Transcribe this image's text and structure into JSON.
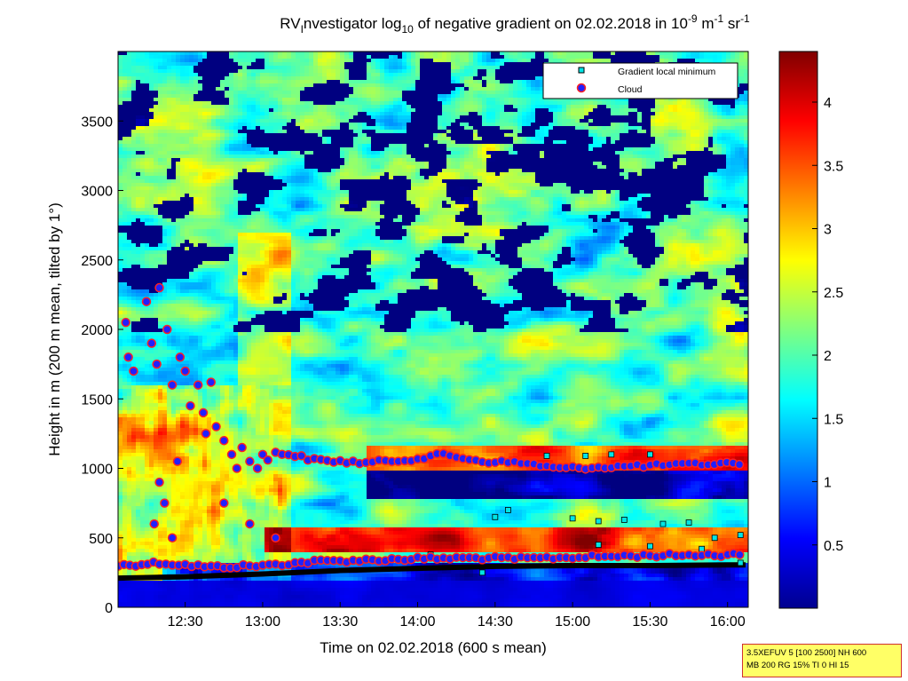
{
  "title": {
    "prefix": "RV",
    "sub_i": "I",
    "mid": "nvestigator log",
    "sub_10": "10",
    "rest1": " of negative gradient on 02.02.2018 in 10",
    "sup1": "-9",
    "rest2": " m",
    "sup2": "-1",
    "rest3": " sr",
    "sup3": "-1"
  },
  "xlabel": "Time on 02.02.2018 (600 s mean)",
  "ylabel": "Height in m (200 m mean, tilted by 1°)",
  "settings_box": {
    "line1": "3.5XEFUV 5 [100 2500] NH 600",
    "line2": "MB 200 RG 15% TI 0 HI 15"
  },
  "colors": {
    "colormap": "jet",
    "gradient_marker_fill": "#00e5e5",
    "cloud_marker_fill": "#2020ff",
    "cloud_marker_edge": "#ff2020",
    "boundary_line": "#000000"
  },
  "chart_data": {
    "type": "heatmap",
    "xlim": [
      "12:04",
      "16:08"
    ],
    "x_ticks": [
      "12:30",
      "13:00",
      "13:30",
      "14:00",
      "14:30",
      "15:00",
      "15:30",
      "16:00"
    ],
    "ylim": [
      0,
      4000
    ],
    "y_ticks": [
      "0",
      "500",
      "1000",
      "1500",
      "2000",
      "2500",
      "3000",
      "3500"
    ],
    "colorbar": {
      "range": [
        0,
        4.4
      ],
      "ticks": [
        "0.5",
        "1",
        "1.5",
        "2",
        "2.5",
        "3",
        "3.5",
        "4"
      ]
    },
    "legend": {
      "placement": "top-right",
      "entries": [
        "Gradient local minimum",
        "Cloud"
      ]
    },
    "cloud_layer_low": [
      [
        "12:04",
        300
      ],
      [
        "12:20",
        320
      ],
      [
        "12:40",
        290
      ],
      [
        "13:00",
        300
      ],
      [
        "13:20",
        330
      ],
      [
        "13:40",
        340
      ],
      [
        "14:00",
        350
      ],
      [
        "14:20",
        355
      ],
      [
        "14:40",
        350
      ],
      [
        "15:00",
        360
      ],
      [
        "15:20",
        370
      ],
      [
        "15:40",
        375
      ],
      [
        "16:00",
        380
      ],
      [
        "16:07",
        380
      ]
    ],
    "cloud_layer_mid": [
      [
        "13:05",
        1120
      ],
      [
        "13:20",
        1060
      ],
      [
        "13:40",
        1040
      ],
      [
        "14:00",
        1070
      ],
      [
        "14:10",
        1100
      ],
      [
        "14:25",
        1050
      ],
      [
        "14:40",
        1040
      ],
      [
        "14:55",
        1000
      ],
      [
        "15:10",
        1010
      ],
      [
        "15:30",
        1020
      ],
      [
        "15:50",
        1030
      ],
      [
        "16:07",
        1040
      ]
    ],
    "cloud_scatter": [
      [
        "12:07",
        2050
      ],
      [
        "12:08",
        1800
      ],
      [
        "12:10",
        1700
      ],
      [
        "12:15",
        2200
      ],
      [
        "12:17",
        1900
      ],
      [
        "12:19",
        1750
      ],
      [
        "12:20",
        2300
      ],
      [
        "12:23",
        2000
      ],
      [
        "12:25",
        1600
      ],
      [
        "12:28",
        1800
      ],
      [
        "12:30",
        1700
      ],
      [
        "12:32",
        1450
      ],
      [
        "12:35",
        1600
      ],
      [
        "12:38",
        1250
      ],
      [
        "12:40",
        1620
      ],
      [
        "12:42",
        1300
      ],
      [
        "12:45",
        1200
      ],
      [
        "12:48",
        1100
      ],
      [
        "12:50",
        1000
      ],
      [
        "12:52",
        1150
      ],
      [
        "12:55",
        1050
      ],
      [
        "12:58",
        1000
      ],
      [
        "13:00",
        1100
      ],
      [
        "12:20",
        900
      ],
      [
        "12:22",
        750
      ],
      [
        "12:18",
        600
      ],
      [
        "12:25",
        500
      ],
      [
        "12:45",
        750
      ],
      [
        "12:55",
        600
      ],
      [
        "13:05",
        500
      ],
      [
        "12:27",
        1050
      ],
      [
        "12:37",
        1400
      ],
      [
        "13:02",
        1060
      ]
    ],
    "gradient_local_minimum": [
      [
        "14:30",
        650
      ],
      [
        "14:35",
        700
      ],
      [
        "15:00",
        640
      ],
      [
        "15:10",
        620
      ],
      [
        "15:20",
        630
      ],
      [
        "15:35",
        600
      ],
      [
        "15:45",
        610
      ],
      [
        "15:55",
        500
      ],
      [
        "16:05",
        520
      ],
      [
        "15:05",
        1090
      ],
      [
        "15:15",
        1100
      ],
      [
        "15:30",
        1100
      ],
      [
        "14:50",
        1090
      ],
      [
        "15:10",
        450
      ],
      [
        "15:30",
        440
      ],
      [
        "15:50",
        420
      ],
      [
        "14:05",
        380
      ],
      [
        "14:25",
        250
      ],
      [
        "16:05",
        320
      ]
    ],
    "boundary_line": [
      [
        "12:04",
        210
      ],
      [
        "12:30",
        220
      ],
      [
        "13:00",
        240
      ],
      [
        "13:30",
        265
      ],
      [
        "14:00",
        280
      ],
      [
        "14:30",
        295
      ],
      [
        "15:00",
        300
      ],
      [
        "15:30",
        300
      ],
      [
        "16:00",
        305
      ],
      [
        "16:07",
        305
      ]
    ]
  }
}
